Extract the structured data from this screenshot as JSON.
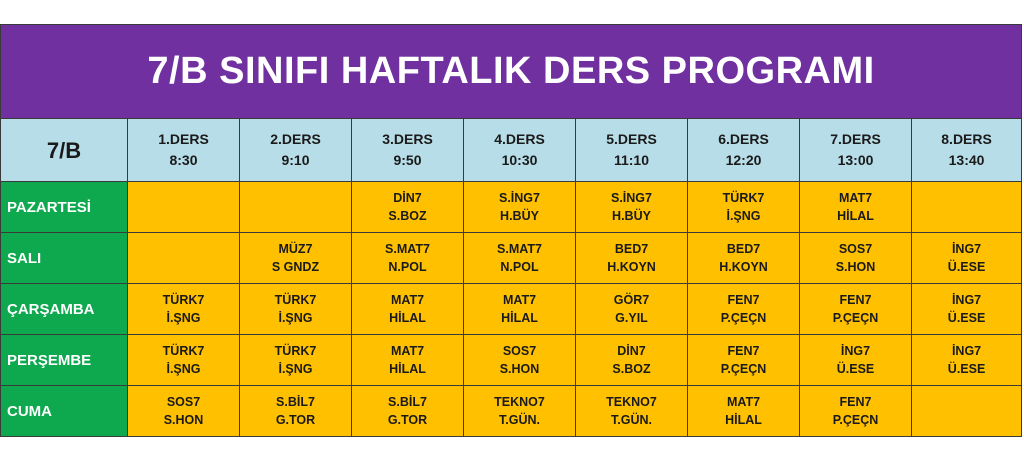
{
  "title": "7/B SINIFI HAFTALIK DERS PROGRAMI",
  "corner": "7/B",
  "periods": [
    {
      "name": "1.DERS",
      "time": "8:30"
    },
    {
      "name": "2.DERS",
      "time": "9:10"
    },
    {
      "name": "3.DERS",
      "time": "9:50"
    },
    {
      "name": "4.DERS",
      "time": "10:30"
    },
    {
      "name": "5.DERS",
      "time": "11:10"
    },
    {
      "name": "6.DERS",
      "time": "12:20"
    },
    {
      "name": "7.DERS",
      "time": "13:00"
    },
    {
      "name": "8.DERS",
      "time": "13:40"
    }
  ],
  "rows": [
    {
      "day": "PAZARTESİ",
      "cells": [
        {
          "subject": "",
          "teacher": ""
        },
        {
          "subject": "",
          "teacher": ""
        },
        {
          "subject": "DİN7",
          "teacher": "S.BOZ"
        },
        {
          "subject": "S.İNG7",
          "teacher": "H.BÜY"
        },
        {
          "subject": "S.İNG7",
          "teacher": "H.BÜY"
        },
        {
          "subject": "TÜRK7",
          "teacher": "İ.ŞNG"
        },
        {
          "subject": "MAT7",
          "teacher": "HİLAL"
        },
        {
          "subject": "",
          "teacher": ""
        }
      ]
    },
    {
      "day": "SALI",
      "cells": [
        {
          "subject": "",
          "teacher": ""
        },
        {
          "subject": "MÜZ7",
          "teacher": "S GNDZ"
        },
        {
          "subject": "S.MAT7",
          "teacher": "N.POL"
        },
        {
          "subject": "S.MAT7",
          "teacher": "N.POL"
        },
        {
          "subject": "BED7",
          "teacher": "H.KOYN"
        },
        {
          "subject": "BED7",
          "teacher": "H.KOYN"
        },
        {
          "subject": "SOS7",
          "teacher": "S.HON"
        },
        {
          "subject": "İNG7",
          "teacher": "Ü.ESE"
        }
      ]
    },
    {
      "day": "ÇARŞAMBA",
      "cells": [
        {
          "subject": "TÜRK7",
          "teacher": "İ.ŞNG"
        },
        {
          "subject": "TÜRK7",
          "teacher": "İ.ŞNG"
        },
        {
          "subject": "MAT7",
          "teacher": "HİLAL"
        },
        {
          "subject": "MAT7",
          "teacher": "HİLAL"
        },
        {
          "subject": "GÖR7",
          "teacher": "G.YIL"
        },
        {
          "subject": "FEN7",
          "teacher": "P.ÇEÇN"
        },
        {
          "subject": "FEN7",
          "teacher": "P.ÇEÇN"
        },
        {
          "subject": "İNG7",
          "teacher": "Ü.ESE"
        }
      ]
    },
    {
      "day": "PERŞEMBE",
      "cells": [
        {
          "subject": "TÜRK7",
          "teacher": "İ.ŞNG"
        },
        {
          "subject": "TÜRK7",
          "teacher": "İ.ŞNG"
        },
        {
          "subject": "MAT7",
          "teacher": "HİLAL"
        },
        {
          "subject": "SOS7",
          "teacher": "S.HON"
        },
        {
          "subject": "DİN7",
          "teacher": "S.BOZ"
        },
        {
          "subject": "FEN7",
          "teacher": "P.ÇEÇN"
        },
        {
          "subject": "İNG7",
          "teacher": "Ü.ESE"
        },
        {
          "subject": "İNG7",
          "teacher": "Ü.ESE"
        }
      ]
    },
    {
      "day": "CUMA",
      "cells": [
        {
          "subject": "SOS7",
          "teacher": "S.HON"
        },
        {
          "subject": "S.BİL7",
          "teacher": "G.TOR"
        },
        {
          "subject": "S.BİL7",
          "teacher": "G.TOR"
        },
        {
          "subject": "TEKNO7",
          "teacher": "T.GÜN."
        },
        {
          "subject": "TEKNO7",
          "teacher": "T.GÜN."
        },
        {
          "subject": "MAT7",
          "teacher": "HİLAL"
        },
        {
          "subject": "FEN7",
          "teacher": "P.ÇEÇN"
        },
        {
          "subject": "",
          "teacher": ""
        }
      ]
    }
  ],
  "colors": {
    "title_bg": "#7030a0",
    "header_bg": "#b7dde8",
    "day_bg": "#0ea84f",
    "cell_bg": "#ffc000"
  }
}
